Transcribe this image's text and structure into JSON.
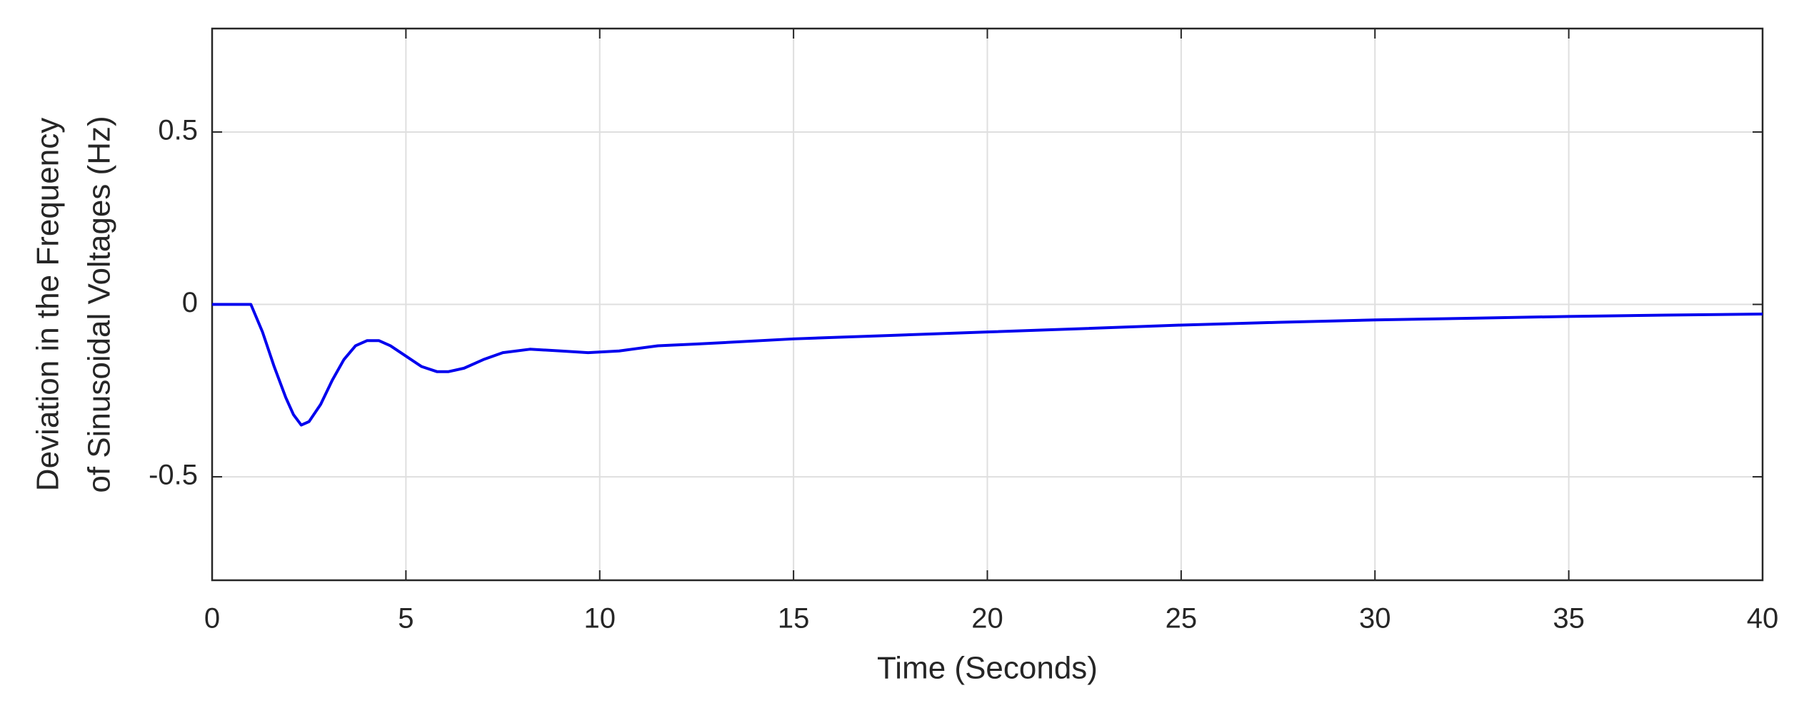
{
  "chart_data": {
    "type": "line",
    "xlabel": "Time (Seconds)",
    "ylabel": [
      "Deviation in the Frequency",
      "of Sinusoidal Voltages (Hz)"
    ],
    "x": [
      0,
      1,
      1.3,
      1.6,
      1.9,
      2.1,
      2.3,
      2.5,
      2.8,
      3.1,
      3.4,
      3.7,
      4.0,
      4.3,
      4.6,
      5.0,
      5.4,
      5.8,
      6.1,
      6.5,
      7.0,
      7.5,
      8.2,
      9.0,
      9.7,
      10.5,
      11.5,
      12.5,
      15,
      17.5,
      20,
      22.5,
      25,
      27.5,
      30,
      32.5,
      35,
      37.5,
      40
    ],
    "series": [
      {
        "color": "#0000ee",
        "values": [
          0,
          0,
          -0.08,
          -0.18,
          -0.27,
          -0.32,
          -0.35,
          -0.34,
          -0.29,
          -0.22,
          -0.16,
          -0.12,
          -0.105,
          -0.105,
          -0.12,
          -0.15,
          -0.18,
          -0.195,
          -0.195,
          -0.185,
          -0.16,
          -0.14,
          -0.13,
          -0.135,
          -0.14,
          -0.135,
          -0.12,
          -0.115,
          -0.1,
          -0.09,
          -0.08,
          -0.07,
          -0.06,
          -0.052,
          -0.045,
          -0.04,
          -0.035,
          -0.031,
          -0.028
        ]
      }
    ],
    "xlim": [
      0,
      40
    ],
    "xticks": [
      0,
      5,
      10,
      15,
      20,
      25,
      30,
      35,
      40
    ],
    "ylim": [
      -0.8,
      0.8
    ],
    "yticks": [
      -0.5,
      0,
      0.5
    ],
    "grid": true
  }
}
